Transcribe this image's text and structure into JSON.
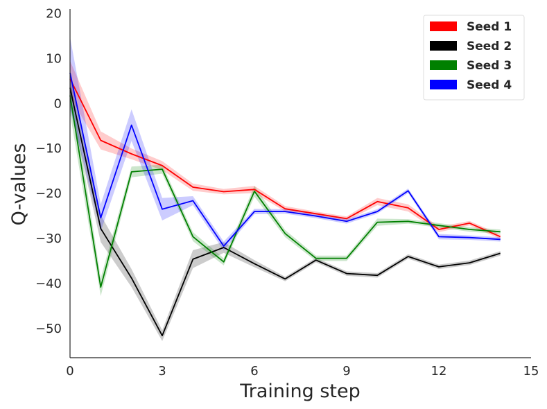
{
  "chart_data": {
    "type": "line",
    "xlabel": "Training step",
    "ylabel": "Q-values",
    "xlim": [
      0,
      15
    ],
    "ylim": [
      -56.5,
      21
    ],
    "xticks": [
      0,
      3,
      6,
      9,
      12,
      15
    ],
    "yticks": [
      20,
      10,
      0,
      -10,
      -20,
      -30,
      -40,
      -50
    ],
    "xtick_labels": [
      "0",
      "3",
      "6",
      "9",
      "12",
      "15"
    ],
    "ytick_labels": [
      "20",
      "10",
      "0",
      "−10",
      "−20",
      "−30",
      "−40",
      "−50"
    ],
    "grid": false,
    "legend_position": "top-right",
    "x": [
      0,
      1,
      2,
      3,
      4,
      5,
      6,
      7,
      8,
      9,
      10,
      11,
      12,
      13,
      14
    ],
    "series": [
      {
        "name": "Seed 1",
        "color": "#ff0000",
        "values": [
          5.5,
          -8.2,
          -11.2,
          -13.8,
          -18.6,
          -19.6,
          -19.1,
          -23.4,
          -24.5,
          -25.6,
          -21.8,
          -23.2,
          -28.0,
          -26.6,
          -29.6
        ],
        "spread": [
          4.0,
          2.0,
          1.2,
          1.0,
          0.8,
          0.6,
          0.8,
          0.6,
          0.5,
          0.5,
          0.8,
          0.8,
          0.6,
          0.5,
          0.5
        ]
      },
      {
        "name": "Seed 2",
        "color": "#000000",
        "values": [
          3.5,
          -27.8,
          -38.8,
          -51.6,
          -34.6,
          -32.0,
          -35.6,
          -39.0,
          -34.8,
          -37.8,
          -38.2,
          -34.0,
          -36.3,
          -35.4,
          -33.3
        ],
        "spread": [
          4.0,
          3.0,
          2.0,
          1.2,
          2.0,
          1.2,
          0.8,
          0.5,
          0.5,
          0.5,
          0.5,
          0.5,
          0.5,
          0.5,
          0.5
        ]
      },
      {
        "name": "Seed 3",
        "color": "#008000",
        "values": [
          1.8,
          -40.8,
          -15.2,
          -14.6,
          -29.6,
          -35.2,
          -19.5,
          -28.9,
          -34.4,
          -34.4,
          -26.4,
          -26.2,
          -27.1,
          -28.0,
          -28.5
        ],
        "spread": [
          4.0,
          2.0,
          1.2,
          1.0,
          1.0,
          0.8,
          1.2,
          0.8,
          0.6,
          0.6,
          0.8,
          0.5,
          0.5,
          0.5,
          0.5
        ]
      },
      {
        "name": "Seed 4",
        "color": "#0000ff",
        "values": [
          6.8,
          -25.4,
          -4.8,
          -23.5,
          -21.6,
          -31.7,
          -24.0,
          -24.0,
          -25.0,
          -26.2,
          -24.0,
          -19.4,
          -29.6,
          -29.8,
          -30.2
        ],
        "spread": [
          8.0,
          3.0,
          3.5,
          2.5,
          1.0,
          1.0,
          0.6,
          0.5,
          0.5,
          0.5,
          0.5,
          0.5,
          0.6,
          0.5,
          0.5
        ]
      }
    ]
  }
}
